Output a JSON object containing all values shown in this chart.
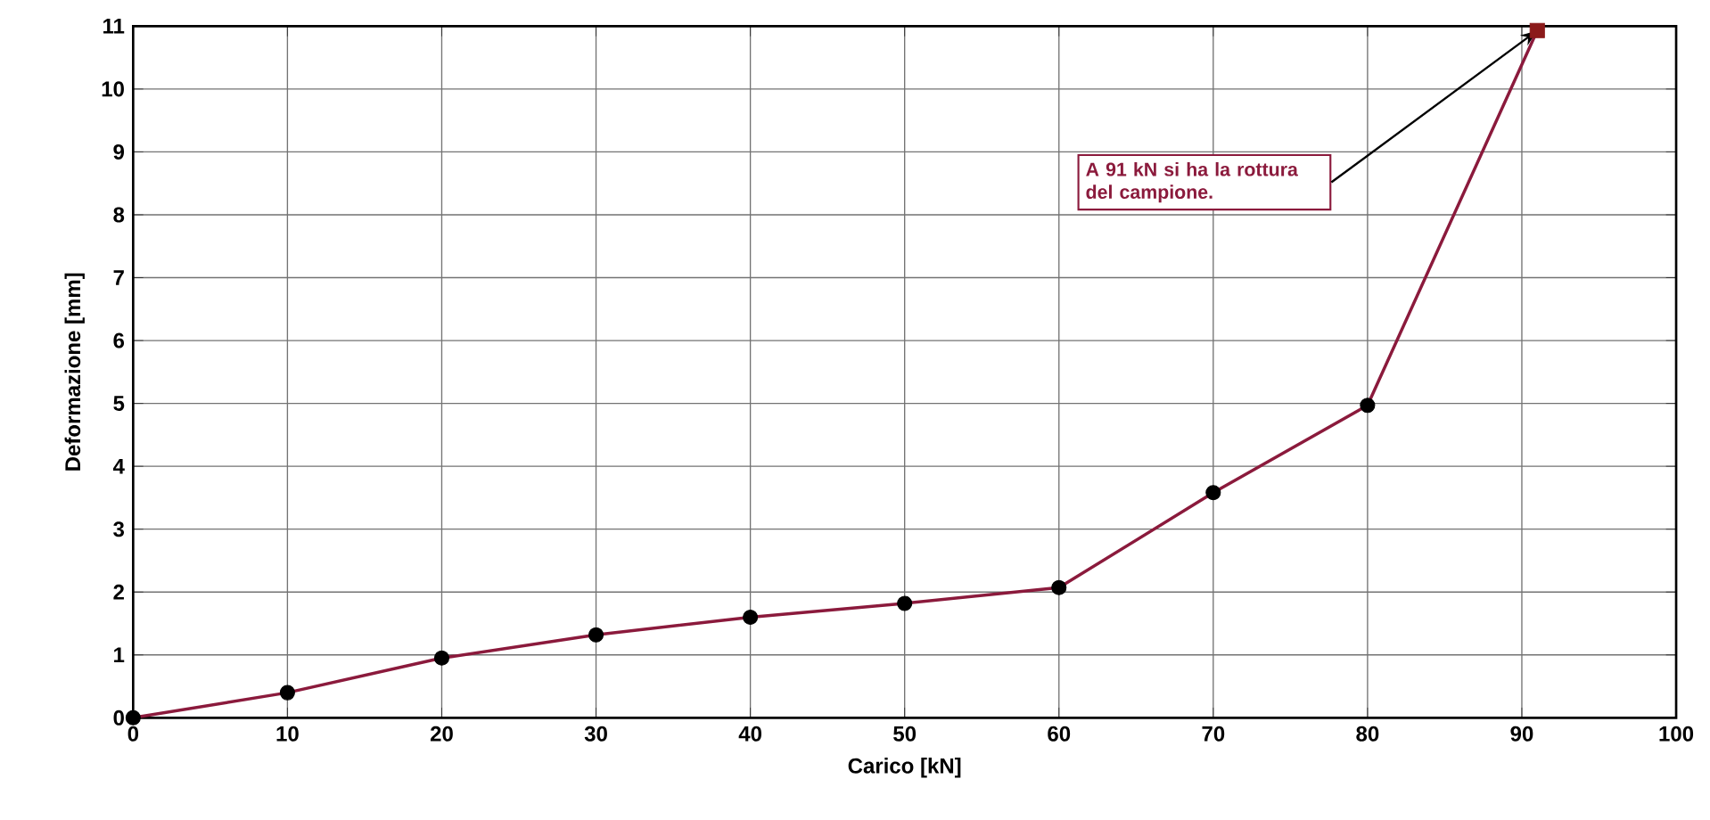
{
  "chart_data": {
    "type": "line",
    "xlabel": "Carico [kN]",
    "ylabel": "Deformazione [mm]",
    "xlim": [
      0,
      100
    ],
    "xticks": [
      0,
      10,
      20,
      30,
      40,
      50,
      60,
      70,
      80,
      90,
      100
    ],
    "ylim": [
      0,
      11
    ],
    "yticks": [
      0,
      1,
      2,
      3,
      4,
      5,
      6,
      7,
      8,
      9,
      10,
      11
    ],
    "grid": true,
    "series": [
      {
        "marker": "none",
        "color": "#8b1a3c",
        "x": [
          0,
          10,
          20,
          30,
          40,
          50,
          60,
          70,
          80,
          91
        ],
        "values": [
          0,
          0.4,
          0.95,
          1.32,
          1.6,
          1.82,
          2.07,
          3.58,
          4.97,
          10.93
        ]
      },
      {
        "type": "scatter",
        "marker": "circle",
        "color": "#000000",
        "x": [
          0,
          10,
          20,
          30,
          40,
          50,
          60,
          70,
          80
        ],
        "values": [
          0,
          0.4,
          0.95,
          1.32,
          1.6,
          1.82,
          2.07,
          3.58,
          4.97
        ]
      },
      {
        "type": "scatter",
        "marker": "square",
        "color": "#8b1a1a",
        "x": [
          91
        ],
        "values": [
          10.93
        ]
      }
    ],
    "annotations": [
      "A 91 kN si ha la rottura del campione."
    ]
  }
}
